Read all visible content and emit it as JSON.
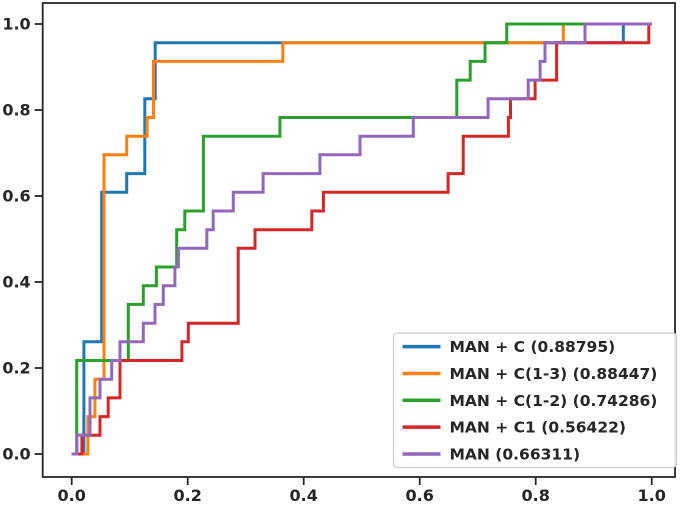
{
  "figure": {
    "background_color": "#ffffff",
    "axis_color": "#262626",
    "tick_label_color": "#262626",
    "legend_border_color": "#cccccc",
    "legend_background_color": "#ffffff"
  },
  "chart_data": {
    "type": "line",
    "subtype": "roc-step-curves",
    "title": "",
    "xlabel": "",
    "ylabel": "",
    "grid": false,
    "xlim": [
      -0.05,
      1.04
    ],
    "ylim": [
      -0.053,
      1.049
    ],
    "x_ticks": [
      {
        "value": 0.0,
        "label": "0.0"
      },
      {
        "value": 0.2,
        "label": "0.2"
      },
      {
        "value": 0.4,
        "label": "0.4"
      },
      {
        "value": 0.6,
        "label": "0.6"
      },
      {
        "value": 0.8,
        "label": "0.8"
      },
      {
        "value": 1.0,
        "label": "1.0"
      }
    ],
    "y_ticks": [
      {
        "value": 0.0,
        "label": "0.0"
      },
      {
        "value": 0.2,
        "label": "0.2"
      },
      {
        "value": 0.4,
        "label": "0.4"
      },
      {
        "value": 0.6,
        "label": "0.6"
      },
      {
        "value": 0.8,
        "label": "0.8"
      },
      {
        "value": 1.0,
        "label": "1.0"
      }
    ],
    "legend": {
      "position": "lower right",
      "entries": [
        {
          "label": "MAN + C (0.88795)",
          "color": "#1f77b4"
        },
        {
          "label": "MAN + C(1-3) (0.88447)",
          "color": "#ff7f0e"
        },
        {
          "label": "MAN + C(1-2) (0.74286)",
          "color": "#2ca02c"
        },
        {
          "label": "MAN + C1 (0.56422)",
          "color": "#d62728"
        },
        {
          "label": "MAN (0.66311)",
          "color": "#9467bd"
        }
      ]
    },
    "series": [
      {
        "name": "man-plus-c",
        "label": "MAN + C (0.88795)",
        "auc": 0.88795,
        "color": "#1f77b4",
        "points": [
          [
            0,
            0
          ],
          [
            0.021,
            0
          ],
          [
            0.021,
            0.2609
          ],
          [
            0.0517,
            0.2609
          ],
          [
            0.0517,
            0.6087
          ],
          [
            0.0948,
            0.6087
          ],
          [
            0.0948,
            0.6522
          ],
          [
            0.126,
            0.6522
          ],
          [
            0.126,
            0.8261
          ],
          [
            0.144,
            0.8261
          ],
          [
            0.144,
            0.9565
          ],
          [
            0.951,
            0.9565
          ],
          [
            0.951,
            1
          ],
          [
            1,
            1
          ]
        ]
      },
      {
        "name": "man-plus-c1-3",
        "label": "MAN + C(1-3) (0.88447)",
        "auc": 0.88447,
        "color": "#ff7f0e",
        "points": [
          [
            0,
            0
          ],
          [
            0.028,
            0
          ],
          [
            0.028,
            0.087
          ],
          [
            0.04,
            0.087
          ],
          [
            0.04,
            0.1739
          ],
          [
            0.0557,
            0.1739
          ],
          [
            0.0557,
            0.6957
          ],
          [
            0.0948,
            0.6957
          ],
          [
            0.0948,
            0.7391
          ],
          [
            0.13,
            0.7391
          ],
          [
            0.13,
            0.7826
          ],
          [
            0.141,
            0.7826
          ],
          [
            0.141,
            0.913
          ],
          [
            0.364,
            0.913
          ],
          [
            0.364,
            0.9565
          ],
          [
            0.8475,
            0.9565
          ],
          [
            0.8475,
            1
          ],
          [
            1,
            1
          ]
        ]
      },
      {
        "name": "man-plus-c1-2",
        "label": "MAN + C(1-2) (0.74286)",
        "auc": 0.74286,
        "color": "#2ca02c",
        "points": [
          [
            0,
            0
          ],
          [
            0.0086,
            0
          ],
          [
            0.0086,
            0.2174
          ],
          [
            0.0976,
            0.2174
          ],
          [
            0.0976,
            0.3478
          ],
          [
            0.1234,
            0.3478
          ],
          [
            0.1234,
            0.3913
          ],
          [
            0.146,
            0.3913
          ],
          [
            0.146,
            0.4348
          ],
          [
            0.181,
            0.4348
          ],
          [
            0.181,
            0.5217
          ],
          [
            0.195,
            0.5217
          ],
          [
            0.195,
            0.5652
          ],
          [
            0.227,
            0.5652
          ],
          [
            0.227,
            0.7391
          ],
          [
            0.359,
            0.7391
          ],
          [
            0.359,
            0.7826
          ],
          [
            0.664,
            0.7826
          ],
          [
            0.664,
            0.8696
          ],
          [
            0.687,
            0.8696
          ],
          [
            0.687,
            0.913
          ],
          [
            0.7126,
            0.913
          ],
          [
            0.7126,
            0.9565
          ],
          [
            0.75,
            0.9565
          ],
          [
            0.75,
            1
          ],
          [
            1,
            1
          ]
        ]
      },
      {
        "name": "man-plus-c1",
        "label": "MAN + C1 (0.56422)",
        "auc": 0.56422,
        "color": "#d62728",
        "points": [
          [
            0,
            0
          ],
          [
            0.0175,
            0
          ],
          [
            0.0175,
            0.0435
          ],
          [
            0.0488,
            0.0435
          ],
          [
            0.0488,
            0.087
          ],
          [
            0.063,
            0.087
          ],
          [
            0.063,
            0.1304
          ],
          [
            0.0833,
            0.1304
          ],
          [
            0.0833,
            0.2174
          ],
          [
            0.19,
            0.2174
          ],
          [
            0.19,
            0.2609
          ],
          [
            0.201,
            0.2609
          ],
          [
            0.201,
            0.3043
          ],
          [
            0.287,
            0.3043
          ],
          [
            0.287,
            0.4783
          ],
          [
            0.316,
            0.4783
          ],
          [
            0.316,
            0.5217
          ],
          [
            0.414,
            0.5217
          ],
          [
            0.414,
            0.5652
          ],
          [
            0.434,
            0.5652
          ],
          [
            0.434,
            0.6087
          ],
          [
            0.649,
            0.6087
          ],
          [
            0.649,
            0.6522
          ],
          [
            0.675,
            0.6522
          ],
          [
            0.675,
            0.7391
          ],
          [
            0.753,
            0.7391
          ],
          [
            0.753,
            0.7826
          ],
          [
            0.7565,
            0.7826
          ],
          [
            0.7565,
            0.8261
          ],
          [
            0.799,
            0.8261
          ],
          [
            0.799,
            0.8696
          ],
          [
            0.836,
            0.8696
          ],
          [
            0.836,
            0.9565
          ],
          [
            0.995,
            0.9565
          ],
          [
            0.995,
            1
          ],
          [
            1,
            1
          ]
        ]
      },
      {
        "name": "man",
        "label": "MAN (0.66311)",
        "auc": 0.66311,
        "color": "#9467bd",
        "points": [
          [
            0,
            0
          ],
          [
            0.009,
            0
          ],
          [
            0.009,
            0.0435
          ],
          [
            0.0316,
            0.0435
          ],
          [
            0.0316,
            0.1304
          ],
          [
            0.0488,
            0.1304
          ],
          [
            0.0488,
            0.1739
          ],
          [
            0.069,
            0.1739
          ],
          [
            0.069,
            0.2174
          ],
          [
            0.0833,
            0.2174
          ],
          [
            0.0833,
            0.2609
          ],
          [
            0.1234,
            0.2609
          ],
          [
            0.1234,
            0.3043
          ],
          [
            0.1436,
            0.3043
          ],
          [
            0.1436,
            0.3478
          ],
          [
            0.158,
            0.3478
          ],
          [
            0.158,
            0.3913
          ],
          [
            0.178,
            0.3913
          ],
          [
            0.178,
            0.4348
          ],
          [
            0.184,
            0.4348
          ],
          [
            0.184,
            0.4783
          ],
          [
            0.233,
            0.4783
          ],
          [
            0.233,
            0.5217
          ],
          [
            0.244,
            0.5217
          ],
          [
            0.244,
            0.5652
          ],
          [
            0.2787,
            0.5652
          ],
          [
            0.2787,
            0.6087
          ],
          [
            0.33,
            0.6087
          ],
          [
            0.33,
            0.6522
          ],
          [
            0.428,
            0.6522
          ],
          [
            0.428,
            0.6957
          ],
          [
            0.497,
            0.6957
          ],
          [
            0.497,
            0.7391
          ],
          [
            0.589,
            0.7391
          ],
          [
            0.589,
            0.7826
          ],
          [
            0.718,
            0.7826
          ],
          [
            0.718,
            0.8261
          ],
          [
            0.787,
            0.8261
          ],
          [
            0.787,
            0.8696
          ],
          [
            0.8075,
            0.8696
          ],
          [
            0.8075,
            0.913
          ],
          [
            0.816,
            0.913
          ],
          [
            0.816,
            0.9565
          ],
          [
            0.885,
            0.9565
          ],
          [
            0.885,
            1
          ],
          [
            1,
            1
          ]
        ]
      }
    ]
  }
}
